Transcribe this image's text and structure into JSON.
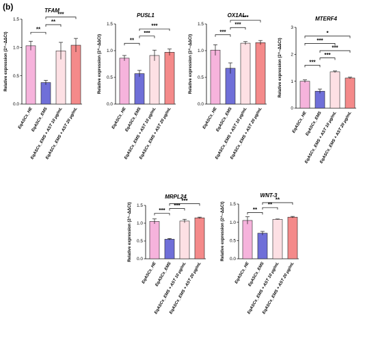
{
  "figure_label": "(b)",
  "y_axis_label": "Relative expression (2^−ΔΔCt)",
  "categories": [
    "EqASCs_HE",
    "EqASCs_EMS",
    "EqASCs_EMS + AST 10 μg/mL",
    "EqASCs_EMS + AST 20 μg/mL"
  ],
  "colors": [
    "#f6b3dc",
    "#6f6fd8",
    "#fde0e4",
    "#f48a8a"
  ],
  "chart_data": [
    {
      "type": "bar",
      "title": "TFAM",
      "ylim": [
        0,
        1.5
      ],
      "yticks": [
        "0.0",
        "0.5",
        "1.0",
        "1.5"
      ],
      "values": [
        1.03,
        0.38,
        0.94,
        1.04
      ],
      "errors": [
        0.08,
        0.04,
        0.15,
        0.12
      ],
      "significance": [
        {
          "from": 0,
          "to": 1,
          "label": "**"
        },
        {
          "from": 1,
          "to": 2,
          "label": "**"
        },
        {
          "from": 1,
          "to": 3,
          "label": "***"
        }
      ]
    },
    {
      "type": "bar",
      "title": "PUSL1",
      "ylim": [
        0,
        1.5
      ],
      "yticks": [
        "0.0",
        "0.5",
        "1.0",
        "1.5"
      ],
      "values": [
        0.86,
        0.57,
        0.91,
        0.97
      ],
      "errors": [
        0.05,
        0.06,
        0.1,
        0.06
      ],
      "significance": [
        {
          "from": 0,
          "to": 1,
          "label": "**"
        },
        {
          "from": 1,
          "to": 2,
          "label": "***"
        },
        {
          "from": 1,
          "to": 3,
          "label": "***"
        }
      ]
    },
    {
      "type": "bar",
      "title": "OX1AL",
      "ylim": [
        0,
        1.5
      ],
      "yticks": [
        "0.0",
        "0.5",
        "1.0",
        "1.5"
      ],
      "values": [
        1.01,
        0.67,
        1.14,
        1.15
      ],
      "errors": [
        0.1,
        0.1,
        0.03,
        0.04
      ],
      "significance": [
        {
          "from": 0,
          "to": 1,
          "label": "***"
        },
        {
          "from": 1,
          "to": 2,
          "label": "***"
        },
        {
          "from": 1,
          "to": 3,
          "label": "***"
        }
      ]
    },
    {
      "type": "bar",
      "title": "MTERF4",
      "ylim": [
        0,
        3
      ],
      "yticks": [
        "0",
        "1",
        "2",
        "3"
      ],
      "values": [
        1.0,
        0.63,
        1.35,
        1.12
      ],
      "errors": [
        0.05,
        0.08,
        0.03,
        0.03
      ],
      "significance": [
        {
          "from": 0,
          "to": 1,
          "label": "***"
        },
        {
          "from": 1,
          "to": 2,
          "label": "***"
        },
        {
          "from": 1,
          "to": 3,
          "label": "***"
        },
        {
          "from": 0,
          "to": 2,
          "label": "***"
        },
        {
          "from": 0,
          "to": 3,
          "label": "*"
        }
      ]
    },
    {
      "type": "bar",
      "title": "MRPL24",
      "ylim": [
        0,
        1.5
      ],
      "yticks": [
        "0.0",
        "0.5",
        "1.0",
        "1.5"
      ],
      "values": [
        1.05,
        0.55,
        1.06,
        1.15
      ],
      "errors": [
        0.07,
        0.02,
        0.05,
        0.02
      ],
      "significance": [
        {
          "from": 0,
          "to": 1,
          "label": "***"
        },
        {
          "from": 1,
          "to": 2,
          "label": "***"
        },
        {
          "from": 1,
          "to": 3,
          "label": "***"
        }
      ]
    },
    {
      "type": "bar",
      "title": "WNT-3",
      "ylim": [
        0,
        1.5
      ],
      "yticks": [
        "0.0",
        "0.5",
        "1.0",
        "1.5"
      ],
      "values": [
        1.05,
        0.7,
        1.08,
        1.14
      ],
      "errors": [
        0.1,
        0.05,
        0.01,
        0.02
      ],
      "significance": [
        {
          "from": 0,
          "to": 1,
          "label": "**"
        },
        {
          "from": 1,
          "to": 2,
          "label": "**"
        },
        {
          "from": 1,
          "to": 3,
          "label": "**"
        }
      ]
    }
  ]
}
